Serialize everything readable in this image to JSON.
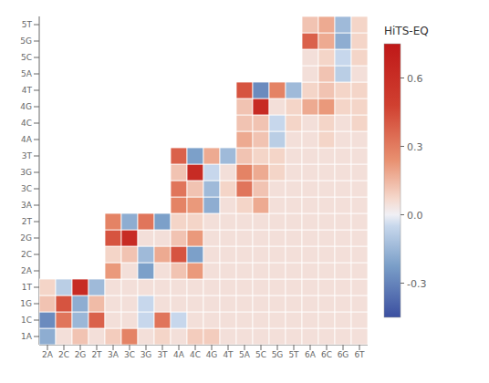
{
  "chart_data": {
    "type": "heatmap",
    "x": [
      "2A",
      "2C",
      "2G",
      "2T",
      "3A",
      "3C",
      "3G",
      "3T",
      "4A",
      "4C",
      "4G",
      "4T",
      "5A",
      "5C",
      "5G",
      "5T",
      "6A",
      "6C",
      "6G",
      "6T"
    ],
    "y": [
      "1A",
      "1C",
      "1G",
      "1T",
      "2A",
      "2C",
      "2G",
      "2T",
      "3A",
      "3C",
      "3G",
      "3T",
      "4A",
      "4C",
      "4G",
      "4T",
      "5A",
      "5C",
      "5G",
      "5T"
    ],
    "matrix": [
      [
        -0.18,
        0.05,
        0.12,
        0.05,
        0.1,
        0.28,
        0.05,
        0.08,
        0.05,
        0.1,
        0.1,
        0.05,
        0.05,
        0.05,
        0.05,
        0.05,
        0.05,
        0.05,
        0.05,
        0.05
      ],
      [
        -0.28,
        0.32,
        -0.15,
        0.38,
        0.05,
        0.05,
        -0.05,
        0.32,
        -0.05,
        0.05,
        0.05,
        0.05,
        0.05,
        0.05,
        0.05,
        0.05,
        0.05,
        0.05,
        0.05,
        0.05
      ],
      [
        0.12,
        0.42,
        -0.18,
        0.14,
        0.05,
        0.05,
        -0.05,
        0.05,
        0.05,
        0.05,
        0.05,
        0.05,
        0.05,
        0.05,
        0.05,
        0.05,
        0.05,
        0.05,
        0.05,
        0.05
      ],
      [
        0.08,
        -0.08,
        0.62,
        -0.14,
        0.05,
        0.05,
        0.05,
        0.05,
        0.05,
        0.05,
        0.05,
        0.05,
        0.05,
        0.05,
        0.05,
        0.05,
        0.05,
        0.05,
        0.05,
        0.05
      ],
      [
        null,
        null,
        null,
        null,
        0.22,
        0.05,
        -0.22,
        0.05,
        0.12,
        0.22,
        0.05,
        0.05,
        0.05,
        0.05,
        0.05,
        0.05,
        0.05,
        0.05,
        0.05,
        0.05
      ],
      [
        null,
        null,
        null,
        null,
        0.08,
        0.12,
        -0.14,
        0.18,
        0.42,
        -0.22,
        0.05,
        0.05,
        0.05,
        0.05,
        0.05,
        0.05,
        0.05,
        0.05,
        0.05,
        0.05
      ],
      [
        null,
        null,
        null,
        null,
        0.42,
        0.62,
        0.05,
        0.05,
        0.12,
        0.22,
        0.05,
        0.05,
        0.05,
        0.05,
        0.05,
        0.05,
        0.05,
        0.05,
        0.05,
        0.05
      ],
      [
        null,
        null,
        null,
        null,
        0.28,
        -0.18,
        0.32,
        -0.22,
        0.08,
        0.08,
        0.05,
        0.05,
        0.05,
        0.05,
        0.05,
        0.05,
        0.05,
        0.05,
        0.05,
        0.05
      ],
      [
        null,
        null,
        null,
        null,
        null,
        null,
        null,
        null,
        0.28,
        0.22,
        -0.18,
        0.05,
        0.08,
        0.18,
        0.05,
        0.05,
        0.05,
        0.05,
        0.05,
        0.05
      ],
      [
        null,
        null,
        null,
        null,
        null,
        null,
        null,
        null,
        0.32,
        0.12,
        -0.14,
        0.08,
        0.32,
        0.12,
        0.05,
        0.05,
        0.05,
        0.05,
        0.05,
        0.05
      ],
      [
        null,
        null,
        null,
        null,
        null,
        null,
        null,
        null,
        0.12,
        0.62,
        -0.05,
        0.05,
        0.28,
        0.18,
        0.08,
        0.05,
        0.05,
        0.05,
        0.05,
        0.05
      ],
      [
        null,
        null,
        null,
        null,
        null,
        null,
        null,
        null,
        0.38,
        -0.22,
        0.18,
        -0.14,
        0.12,
        0.08,
        0.08,
        0.05,
        0.05,
        0.05,
        0.05,
        0.05
      ],
      [
        null,
        null,
        null,
        null,
        null,
        null,
        null,
        null,
        null,
        null,
        null,
        null,
        0.18,
        0.12,
        -0.08,
        0.05,
        0.05,
        0.08,
        0.05,
        0.05
      ],
      [
        null,
        null,
        null,
        null,
        null,
        null,
        null,
        null,
        null,
        null,
        null,
        null,
        0.12,
        0.12,
        -0.05,
        0.08,
        0.05,
        0.08,
        0.05,
        0.08
      ],
      [
        null,
        null,
        null,
        null,
        null,
        null,
        null,
        null,
        null,
        null,
        null,
        null,
        0.12,
        0.62,
        0.05,
        0.08,
        0.18,
        0.22,
        0.08,
        0.08
      ],
      [
        null,
        null,
        null,
        null,
        null,
        null,
        null,
        null,
        null,
        null,
        null,
        null,
        0.42,
        -0.28,
        0.28,
        -0.14,
        0.08,
        0.12,
        0.08,
        0.08
      ],
      [
        null,
        null,
        null,
        null,
        null,
        null,
        null,
        null,
        null,
        null,
        null,
        null,
        null,
        null,
        null,
        null,
        0.05,
        0.12,
        -0.08,
        0.05
      ],
      [
        null,
        null,
        null,
        null,
        null,
        null,
        null,
        null,
        null,
        null,
        null,
        null,
        null,
        null,
        null,
        null,
        0.05,
        0.08,
        -0.05,
        0.08
      ],
      [
        null,
        null,
        null,
        null,
        null,
        null,
        null,
        null,
        null,
        null,
        null,
        null,
        null,
        null,
        null,
        null,
        0.38,
        0.18,
        -0.18,
        0.08
      ],
      [
        null,
        null,
        null,
        null,
        null,
        null,
        null,
        null,
        null,
        null,
        null,
        null,
        null,
        null,
        null,
        null,
        0.12,
        0.18,
        -0.14,
        0.08
      ]
    ],
    "colorbar": {
      "label": "HiTS-EQ",
      "range": [
        -0.45,
        0.75
      ],
      "ticks": [
        -0.3,
        {
          "value": 0,
          "label": "0.0"
        },
        0.3,
        0.6
      ]
    },
    "colors": [
      "#3B4FA0",
      "#7A9EC8",
      "#C8D8EC",
      "#F0F0F5",
      "#F5D8CC",
      "#E89070",
      "#D04030",
      "#BF1818"
    ]
  }
}
